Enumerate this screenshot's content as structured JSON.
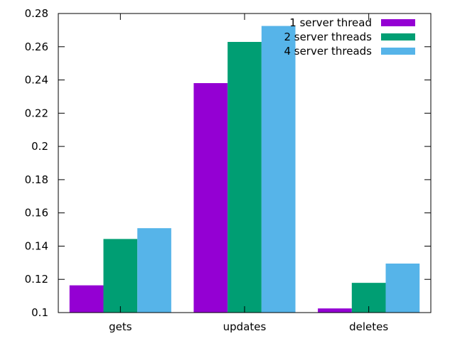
{
  "chart_data": {
    "type": "bar",
    "title": "",
    "xlabel": "",
    "ylabel": "",
    "categories": [
      "gets",
      "updates",
      "deletes"
    ],
    "ylim": [
      0.1,
      0.28
    ],
    "yticks": [
      "0.1",
      "0.12",
      "0.14",
      "0.16",
      "0.18",
      "0.2",
      "0.22",
      "0.24",
      "0.26",
      "0.28"
    ],
    "grid": false,
    "legend_position": "top-right",
    "series": [
      {
        "name": "1 server thread",
        "color": "#9400d3",
        "values": [
          0.1164,
          0.2381,
          0.1025
        ]
      },
      {
        "name": "2 server threads",
        "color": "#009e73",
        "values": [
          0.1443,
          0.2629,
          0.1179
        ]
      },
      {
        "name": "4 server threads",
        "color": "#56b4e9",
        "values": [
          0.1508,
          0.2725,
          0.1295
        ]
      }
    ]
  }
}
